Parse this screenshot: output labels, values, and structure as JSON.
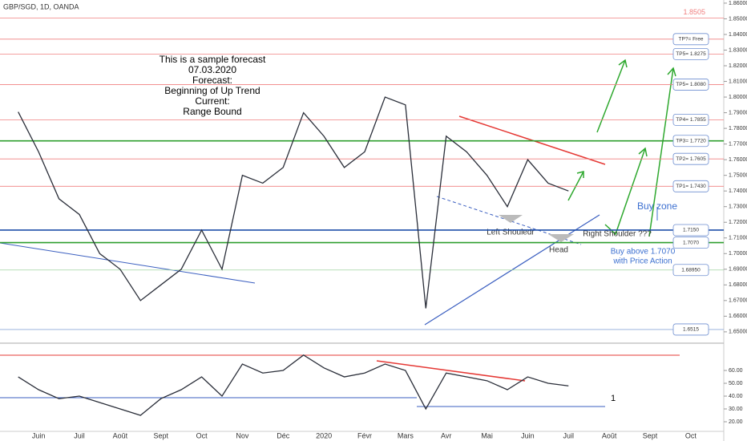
{
  "chart_data": [
    {
      "type": "line",
      "title": "GBP/SGD, 1D, OANDA",
      "categories": [
        null,
        "Juin",
        null,
        "Juil",
        null,
        "Août",
        null,
        "Sept",
        null,
        "Oct",
        null,
        "Nov",
        null,
        "Déc",
        null,
        "2020",
        null,
        "Févr",
        null,
        "Mars",
        null,
        "Avr",
        null,
        "Mai",
        null,
        "Juin",
        null,
        "Juil",
        null,
        "Août",
        null,
        "Sept",
        null,
        "Oct",
        null
      ],
      "series": [
        {
          "color": "#2a2e39",
          "values": [
            1.7905,
            1.765,
            1.735,
            1.725,
            1.7,
            1.69,
            1.67,
            1.68,
            1.69,
            1.715,
            1.69,
            1.75,
            1.745,
            1.755,
            1.79,
            1.775,
            1.755,
            1.765,
            1.8,
            1.795,
            1.665,
            1.775,
            1.765,
            1.75,
            1.73,
            1.76,
            1.745,
            1.74,
            null,
            null,
            null,
            null,
            null,
            null,
            null
          ]
        }
      ],
      "ylim": [
        1.6443,
        1.8615
      ],
      "yticks": [
        {
          "value": 1.65,
          "label": "1.65000"
        },
        {
          "value": 1.66,
          "label": "1.66000"
        },
        {
          "value": 1.67,
          "label": "1.67000"
        },
        {
          "value": 1.68,
          "label": "1.68000"
        },
        {
          "value": 1.69,
          "label": "1.69000"
        },
        {
          "value": 1.7,
          "label": "1.70000"
        },
        {
          "value": 1.71,
          "label": "1.71000"
        },
        {
          "value": 1.72,
          "label": "1.72000"
        },
        {
          "value": 1.73,
          "label": "1.73000"
        },
        {
          "value": 1.74,
          "label": "1.74000"
        },
        {
          "value": 1.75,
          "label": "1.75000"
        },
        {
          "value": 1.76,
          "label": "1.76000"
        },
        {
          "value": 1.77,
          "label": "1.77000"
        },
        {
          "value": 1.78,
          "label": "1.78000"
        },
        {
          "value": 1.79,
          "label": "1.79000"
        },
        {
          "value": 1.8,
          "label": "1.80000"
        },
        {
          "value": 1.81,
          "label": "1.81000"
        },
        {
          "value": 1.82,
          "label": "1.82000"
        },
        {
          "value": 1.83,
          "label": "1.83000"
        },
        {
          "value": 1.84,
          "label": "1.84000"
        },
        {
          "value": 1.85,
          "label": "1.85000"
        },
        {
          "value": 1.86,
          "label": "1.86000"
        }
      ],
      "grid": false,
      "levels": [
        {
          "value": 1.8505,
          "label": "1.8505",
          "color": "#f08080",
          "boxed": false
        },
        {
          "value": 1.837,
          "label": "TP?= Free",
          "color": "#f08080",
          "boxed": true
        },
        {
          "value": 1.8275,
          "label": "TP5= 1.8275",
          "color": "#f08080",
          "boxed": true
        },
        {
          "value": 1.808,
          "label": "TP5= 1.8080",
          "color": "#f08080",
          "boxed": true
        },
        {
          "value": 1.7855,
          "label": "TP4= 1.7855",
          "color": "#f08080",
          "boxed": true
        },
        {
          "value": 1.772,
          "label": "TP3= 1.7720",
          "color": "#2e9e2e",
          "boxed": true
        },
        {
          "value": 1.7605,
          "label": "TP2= 1.7605",
          "color": "#f08080",
          "boxed": true
        },
        {
          "value": 1.743,
          "label": "TP1= 1.7430",
          "color": "#f08080",
          "boxed": true
        },
        {
          "value": 1.715,
          "label": "1.7150",
          "color": "#1f4fa8",
          "boxed": true
        },
        {
          "value": 1.707,
          "label": "1.7070",
          "color": "#2e9e2e",
          "boxed": true
        },
        {
          "value": 1.6895,
          "label": "1.68950",
          "color": "#9fd49f",
          "boxed": true
        },
        {
          "value": 1.6515,
          "label": "1.6515",
          "color": "#8fa8d8",
          "boxed": true
        }
      ],
      "annotations": {
        "forecast_note": [
          "This is a sample forecast",
          "07.03.2020",
          "Forecast:",
          "Beginning of Up Trend",
          "Current:",
          "Range Bound"
        ],
        "buy_zone": "Buy zone",
        "buy_note": [
          "Buy above 1.7070",
          "with Price Action"
        ],
        "left_shoulder": "Left Shouledr",
        "head": "Head",
        "right_shoulder": "Right Shoulder ???"
      }
    },
    {
      "type": "line",
      "series": [
        {
          "color": "#2a2e39",
          "values": [
            55,
            45,
            38,
            40,
            35,
            30,
            25,
            38,
            45,
            55,
            40,
            65,
            58,
            60,
            72,
            62,
            55,
            58,
            65,
            60,
            30,
            58,
            55,
            52,
            45,
            55,
            50,
            48,
            null,
            null,
            null,
            null,
            null,
            null,
            null
          ]
        }
      ],
      "ylim": [
        11.25,
        76.9
      ],
      "yticks": [
        {
          "value": 20,
          "label": "20.00"
        },
        {
          "value": 30,
          "label": "30.00"
        },
        {
          "value": 40,
          "label": "40.00"
        },
        {
          "value": 50,
          "label": "50.00"
        },
        {
          "value": 60,
          "label": "60.00"
        }
      ],
      "marker_label": "1"
    }
  ]
}
